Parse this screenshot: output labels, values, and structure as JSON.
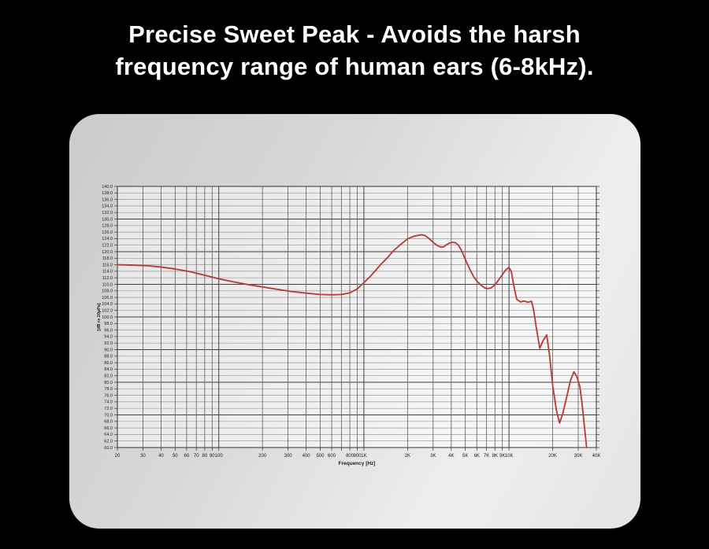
{
  "title": {
    "line1": "Precise Sweet Peak - Avoids the harsh",
    "line2": "frequency range of human ears (6-8kHz)."
  },
  "colors": {
    "background": "#000000",
    "title_text": "#ffffff",
    "panel_dark": "#cbcbcb",
    "panel_light": "#eeeeee",
    "plot_fill": "rgba(255,255,255,0.5)",
    "grid_minor": "#989898",
    "grid_major": "#3f3f3f",
    "grid_vertical": "#5e5e5e",
    "axis_border": "#333333",
    "tick_text": "#1c1c1c",
    "curve": "#b5413c"
  },
  "chart_data": {
    "type": "line",
    "title": "",
    "xlabel": "Frequency [Hz]",
    "ylabel": "[dB re 20µPa]",
    "x_scale": "log",
    "xlim": [
      20,
      40000
    ],
    "ylim": [
      60,
      140
    ],
    "y_minor_step": 2,
    "y_major_step": 10,
    "grid": true,
    "legend_position": "none",
    "y_tick_labels": [
      "140.0",
      "138.0",
      "136.0",
      "134.0",
      "132.0",
      "130.0",
      "128.0",
      "126.0",
      "124.0",
      "122.0",
      "120.0",
      "118.0",
      "116.0",
      "114.0",
      "112.0",
      "110.0",
      "108.0",
      "106.0",
      "104.0",
      "102.0",
      "100.0",
      "98.0",
      "96.0",
      "94.0",
      "92.0",
      "90.0",
      "88.0",
      "86.0",
      "84.0",
      "82.0",
      "80.0",
      "78.0",
      "76.0",
      "74.0",
      "72.0",
      "70.0",
      "68.0",
      "66.0",
      "64.0",
      "62.0",
      "60.0"
    ],
    "x_gridlines": [
      20,
      30,
      40,
      50,
      60,
      70,
      80,
      90,
      100,
      200,
      300,
      400,
      500,
      600,
      700,
      800,
      900,
      1000,
      2000,
      3000,
      4000,
      5000,
      6000,
      7000,
      8000,
      9000,
      10000,
      20000,
      30000,
      40000
    ],
    "x_decade_lines": [
      100,
      1000,
      10000
    ],
    "x_ticks": [
      {
        "f": 20,
        "label": "20"
      },
      {
        "f": 30,
        "label": "30"
      },
      {
        "f": 40,
        "label": "40"
      },
      {
        "f": 50,
        "label": "50"
      },
      {
        "f": 60,
        "label": "60"
      },
      {
        "f": 70,
        "label": "70"
      },
      {
        "f": 80,
        "label": "80"
      },
      {
        "f": 90,
        "label": "90"
      },
      {
        "f": 100,
        "label": "100"
      },
      {
        "f": 200,
        "label": "200"
      },
      {
        "f": 300,
        "label": "300"
      },
      {
        "f": 400,
        "label": "400"
      },
      {
        "f": 500,
        "label": "500"
      },
      {
        "f": 600,
        "label": "600"
      },
      {
        "f": 800,
        "label": "800"
      },
      {
        "f": 900,
        "label": "900"
      },
      {
        "f": 1000,
        "label": "1K"
      },
      {
        "f": 2000,
        "label": "2K"
      },
      {
        "f": 3000,
        "label": "3K"
      },
      {
        "f": 4000,
        "label": "4K"
      },
      {
        "f": 5000,
        "label": "5K"
      },
      {
        "f": 6000,
        "label": "6K"
      },
      {
        "f": 7000,
        "label": "7K"
      },
      {
        "f": 8000,
        "label": "8K"
      },
      {
        "f": 9000,
        "label": "9K"
      },
      {
        "f": 10000,
        "label": "10K"
      },
      {
        "f": 20000,
        "label": "20K"
      },
      {
        "f": 30000,
        "label": "30K"
      },
      {
        "f": 40000,
        "label": "40K"
      }
    ],
    "series": [
      {
        "name": "frequency-response",
        "color": "#b5413c",
        "points": [
          [
            20,
            116.0
          ],
          [
            25,
            115.9
          ],
          [
            32,
            115.7
          ],
          [
            40,
            115.3
          ],
          [
            50,
            114.7
          ],
          [
            63,
            113.9
          ],
          [
            80,
            112.8
          ],
          [
            100,
            111.7
          ],
          [
            125,
            110.8
          ],
          [
            160,
            109.9
          ],
          [
            200,
            109.2
          ],
          [
            250,
            108.5
          ],
          [
            315,
            107.8
          ],
          [
            400,
            107.3
          ],
          [
            500,
            106.9
          ],
          [
            600,
            106.8
          ],
          [
            700,
            106.9
          ],
          [
            800,
            107.4
          ],
          [
            900,
            108.6
          ],
          [
            1000,
            110.5
          ],
          [
            1100,
            112.3
          ],
          [
            1200,
            114.2
          ],
          [
            1300,
            116.0
          ],
          [
            1450,
            118.1
          ],
          [
            1600,
            120.3
          ],
          [
            1800,
            122.3
          ],
          [
            2000,
            123.9
          ],
          [
            2200,
            124.7
          ],
          [
            2350,
            125.0
          ],
          [
            2500,
            125.2
          ],
          [
            2650,
            124.9
          ],
          [
            2800,
            124.1
          ],
          [
            3000,
            122.9
          ],
          [
            3200,
            121.9
          ],
          [
            3400,
            121.4
          ],
          [
            3550,
            121.5
          ],
          [
            3700,
            122.1
          ],
          [
            3900,
            122.7
          ],
          [
            4100,
            122.9
          ],
          [
            4300,
            122.7
          ],
          [
            4500,
            121.9
          ],
          [
            4700,
            120.4
          ],
          [
            4900,
            118.6
          ],
          [
            5100,
            116.8
          ],
          [
            5400,
            114.4
          ],
          [
            5700,
            112.4
          ],
          [
            6000,
            111.0
          ],
          [
            6400,
            109.8
          ],
          [
            6800,
            108.9
          ],
          [
            7100,
            108.7
          ],
          [
            7500,
            108.9
          ],
          [
            8000,
            109.8
          ],
          [
            8500,
            111.4
          ],
          [
            9000,
            113.0
          ],
          [
            9500,
            114.4
          ],
          [
            10000,
            115.2
          ],
          [
            10400,
            113.8
          ],
          [
            10800,
            109.5
          ],
          [
            11300,
            105.4
          ],
          [
            12000,
            104.6
          ],
          [
            12700,
            104.9
          ],
          [
            13500,
            104.5
          ],
          [
            14300,
            104.8
          ],
          [
            14800,
            102.0
          ],
          [
            15400,
            97.0
          ],
          [
            16300,
            90.4
          ],
          [
            17200,
            92.8
          ],
          [
            18200,
            94.5
          ],
          [
            19000,
            88.5
          ],
          [
            20000,
            79.0
          ],
          [
            21200,
            71.5
          ],
          [
            22300,
            67.5
          ],
          [
            23500,
            70.5
          ],
          [
            25000,
            75.5
          ],
          [
            26500,
            80.5
          ],
          [
            28000,
            83.2
          ],
          [
            29300,
            81.8
          ],
          [
            30800,
            78.6
          ],
          [
            31800,
            74.0
          ],
          [
            33000,
            67.0
          ],
          [
            34300,
            60.0
          ]
        ]
      }
    ]
  }
}
